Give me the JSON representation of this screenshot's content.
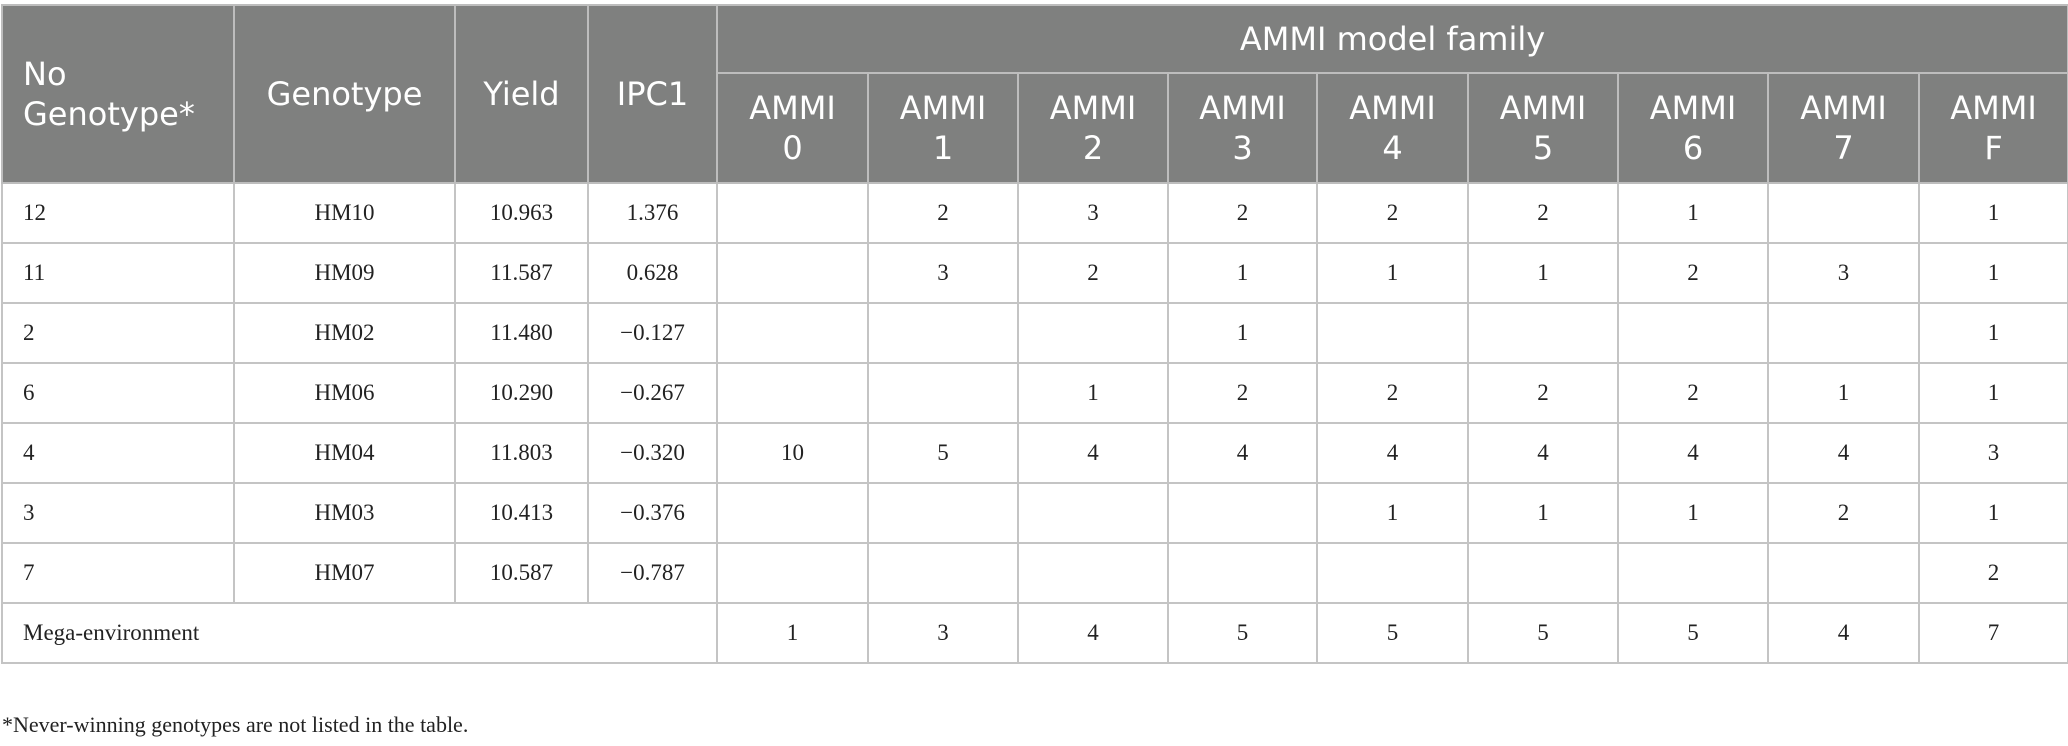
{
  "headers": {
    "no": "No Genotype*",
    "genotype": "Genotype",
    "yield": "Yield",
    "ipc1": "IPC1",
    "family": "AMMI model family",
    "models": [
      "AMMI 0",
      "AMMI 1",
      "AMMI 2",
      "AMMI 3",
      "AMMI 4",
      "AMMI 5",
      "AMMI 6",
      "AMMI 7",
      "AMMI F"
    ]
  },
  "rows": [
    {
      "no": "12",
      "genotype": "HM10",
      "yield": "10.963",
      "ipc1": "1.376",
      "vals": [
        "",
        "2",
        "3",
        "2",
        "2",
        "2",
        "1",
        "",
        "1"
      ]
    },
    {
      "no": "11",
      "genotype": "HM09",
      "yield": "11.587",
      "ipc1": "0.628",
      "vals": [
        "",
        "3",
        "2",
        "1",
        "1",
        "1",
        "2",
        "3",
        "1"
      ]
    },
    {
      "no": "2",
      "genotype": "HM02",
      "yield": "11.480",
      "ipc1": "−0.127",
      "vals": [
        "",
        "",
        "",
        "1",
        "",
        "",
        "",
        "",
        "1"
      ]
    },
    {
      "no": "6",
      "genotype": "HM06",
      "yield": "10.290",
      "ipc1": "−0.267",
      "vals": [
        "",
        "",
        "1",
        "2",
        "2",
        "2",
        "2",
        "1",
        "1"
      ]
    },
    {
      "no": "4",
      "genotype": "HM04",
      "yield": "11.803",
      "ipc1": "−0.320",
      "vals": [
        "10",
        "5",
        "4",
        "4",
        "4",
        "4",
        "4",
        "4",
        "3"
      ]
    },
    {
      "no": "3",
      "genotype": "HM03",
      "yield": "10.413",
      "ipc1": "−0.376",
      "vals": [
        "",
        "",
        "",
        "",
        "1",
        "1",
        "1",
        "2",
        "1"
      ]
    },
    {
      "no": "7",
      "genotype": "HM07",
      "yield": "10.587",
      "ipc1": "−0.787",
      "vals": [
        "",
        "",
        "",
        "",
        "",
        "",
        "",
        "",
        "2"
      ]
    }
  ],
  "mega": {
    "label": "Mega-environment",
    "vals": [
      "1",
      "3",
      "4",
      "5",
      "5",
      "5",
      "5",
      "4",
      "7"
    ]
  },
  "footnote": "*Never-winning genotypes are not listed in the table."
}
